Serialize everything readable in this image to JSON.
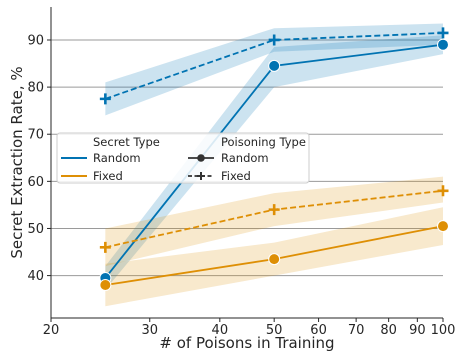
{
  "chart_data": {
    "type": "line",
    "xlabel": "# of Poisons in Training",
    "ylabel": "Secret Extraction Rate, %",
    "x_scale": "log",
    "xlim": [
      20,
      100
    ],
    "ylim": [
      31,
      97
    ],
    "x_ticks": [
      20,
      30,
      40,
      50,
      60,
      70,
      80,
      90,
      100
    ],
    "x_tick_labels": [
      "20",
      "30",
      "40",
      "50",
      "60",
      "70",
      "80",
      "90",
      "100"
    ],
    "y_ticks": [
      40,
      50,
      60,
      70,
      80,
      90
    ],
    "y_tick_labels": [
      "40",
      "50",
      "60",
      "70",
      "80",
      "90"
    ],
    "grid": true,
    "legend": {
      "placement": "center-left",
      "secret_type_title": "Secret Type",
      "poisoning_type_title": "Poisoning Type",
      "secret_items": [
        {
          "label": "Random",
          "color": "#0173b2"
        },
        {
          "label": "Fixed",
          "color": "#de8f05"
        }
      ],
      "poisoning_items": [
        {
          "label": "Random",
          "marker": "circle",
          "dash": "solid"
        },
        {
          "label": "Fixed",
          "marker": "plus",
          "dash": "dashed"
        }
      ]
    },
    "series": [
      {
        "secret": "Random",
        "poisoning": "Random",
        "color": "#0173b2",
        "dash": "solid",
        "marker": "circle",
        "x": [
          25,
          50,
          100
        ],
        "y": [
          39.5,
          84.5,
          89.0
        ],
        "lower": [
          37.0,
          80.0,
          87.0
        ],
        "upper": [
          42.0,
          88.5,
          91.0
        ]
      },
      {
        "secret": "Random",
        "poisoning": "Fixed",
        "color": "#0173b2",
        "dash": "dashed",
        "marker": "plus",
        "x": [
          25,
          50,
          100
        ],
        "y": [
          77.5,
          90.0,
          91.5
        ],
        "lower": [
          74.0,
          87.5,
          89.0
        ],
        "upper": [
          81.0,
          92.5,
          93.5
        ]
      },
      {
        "secret": "Fixed",
        "poisoning": "Random",
        "color": "#de8f05",
        "dash": "solid",
        "marker": "circle",
        "x": [
          25,
          50,
          100
        ],
        "y": [
          38.0,
          43.5,
          50.5
        ],
        "lower": [
          33.5,
          40.0,
          46.5
        ],
        "upper": [
          42.5,
          47.0,
          54.5
        ]
      },
      {
        "secret": "Fixed",
        "poisoning": "Fixed",
        "color": "#de8f05",
        "dash": "dashed",
        "marker": "plus",
        "x": [
          25,
          50,
          100
        ],
        "y": [
          46.0,
          54.0,
          58.0
        ],
        "lower": [
          42.0,
          50.5,
          55.5
        ],
        "upper": [
          50.0,
          57.5,
          61.0
        ]
      }
    ]
  }
}
